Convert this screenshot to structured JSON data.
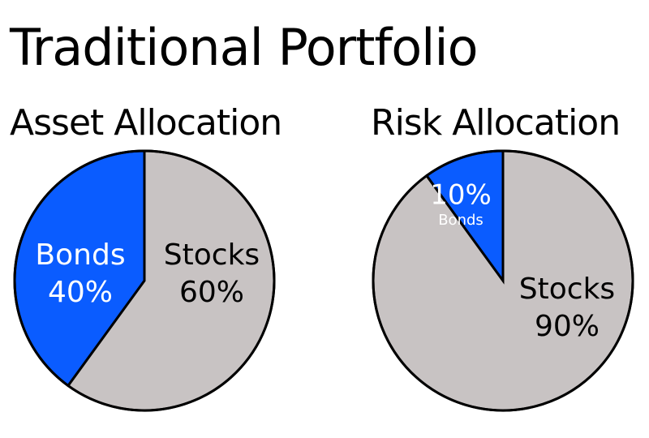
{
  "title": "Traditional Portfolio",
  "colors": {
    "bonds": "#0a5cff",
    "stocks": "#c8c3c3",
    "outline": "#000000",
    "bonds_text": "#ffffff",
    "stocks_text": "#000000"
  },
  "chart_data": [
    {
      "type": "pie",
      "title": "Asset Allocation",
      "slices": [
        {
          "name": "Stocks",
          "value": 60,
          "value_label": "60%",
          "color_key": "stocks",
          "text_color_key": "stocks_text"
        },
        {
          "name": "Bonds",
          "value": 40,
          "value_label": "40%",
          "color_key": "bonds",
          "text_color_key": "bonds_text"
        }
      ]
    },
    {
      "type": "pie",
      "title": "Risk Allocation",
      "slices": [
        {
          "name": "Stocks",
          "value": 90,
          "value_label": "90%",
          "color_key": "stocks",
          "text_color_key": "stocks_text"
        },
        {
          "name": "Bonds",
          "value": 10,
          "value_label": "10%",
          "color_key": "bonds",
          "text_color_key": "bonds_text"
        }
      ]
    }
  ]
}
